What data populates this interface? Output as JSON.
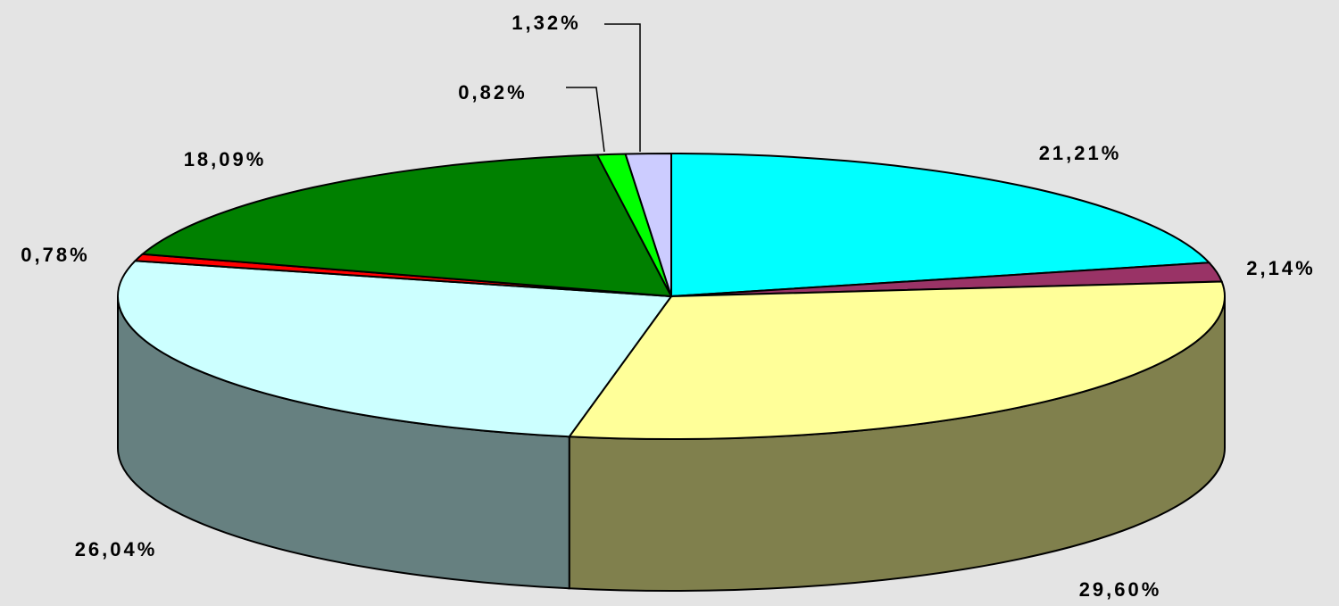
{
  "chart_data": {
    "type": "pie3d",
    "values": [
      21.21,
      2.14,
      29.6,
      26.04,
      0.78,
      18.09,
      0.82,
      1.32
    ],
    "value_labels": [
      "21,21%",
      "2,14%",
      "29,60%",
      "26,04%",
      "0,78%",
      "18,09%",
      "0,82%",
      "1,32%"
    ],
    "colors": [
      "#00ffff",
      "#993366",
      "#ffff99",
      "#ccffff",
      "#ff0000",
      "#008000",
      "#00ff00",
      "#ccccff"
    ]
  }
}
